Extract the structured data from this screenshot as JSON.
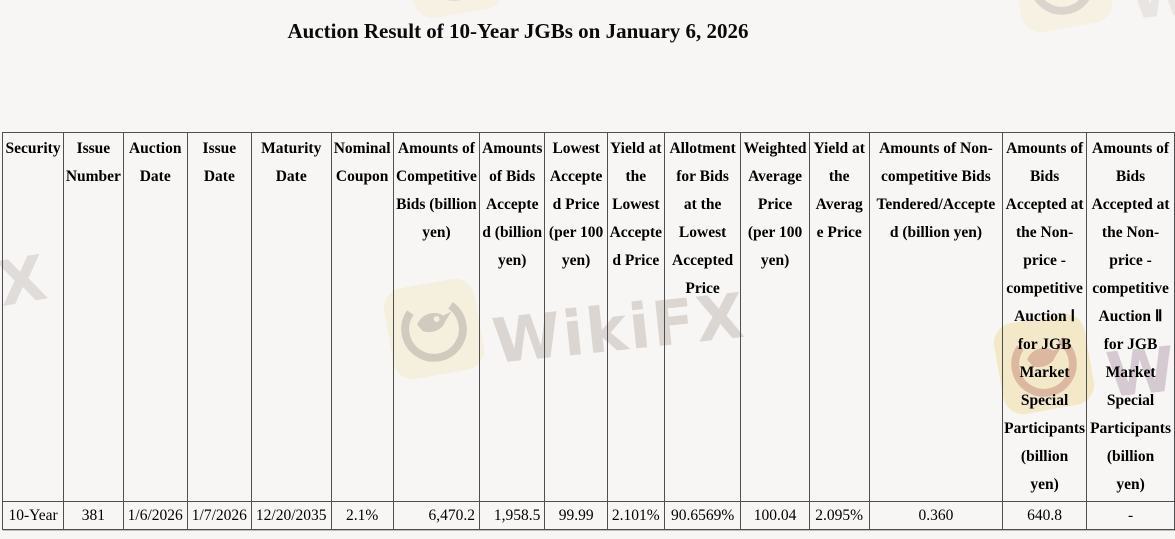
{
  "page_title": "Auction Result of 10-Year JGBs on January 6, 2026",
  "watermark": {
    "brand": "WikiFX",
    "text_color": "#dcd6d2",
    "square_bg_color": "#f5ecce",
    "logo_fg_color": "#b9ad9c"
  },
  "table": {
    "columns": [
      {
        "key": "security",
        "label": "Security",
        "width": 62,
        "align": "center"
      },
      {
        "key": "issue-number",
        "label": "Issue\nNumber",
        "width": 60,
        "align": "center"
      },
      {
        "key": "auction-date",
        "label": "Auction\nDate",
        "width": 62,
        "align": "center"
      },
      {
        "key": "issue-date",
        "label": "Issue\nDate",
        "width": 57,
        "align": "center"
      },
      {
        "key": "maturity-date",
        "label": "Maturity\nDate",
        "width": 76,
        "align": "center"
      },
      {
        "key": "nominal-coupon",
        "label": "Nominal\nCoupon",
        "width": 63,
        "align": "center"
      },
      {
        "key": "competitive-bids-amount",
        "label": "Amounts of\nCompetitive\nBids (billion\nyen)",
        "width": 87,
        "align": "right"
      },
      {
        "key": "bids-accepted-amount",
        "label": "Amounts\nof Bids\nAccepte\nd (billion\nyen)",
        "width": 66,
        "align": "right"
      },
      {
        "key": "lowest-accepted-price",
        "label": "Lowest\nAccepte\nd Price\n(per 100\nyen)",
        "width": 64,
        "align": "center"
      },
      {
        "key": "yield-lowest-accepted-price",
        "label": "Yield at\nthe\nLowest\nAccepte\nd Price",
        "width": 57,
        "align": "center"
      },
      {
        "key": "allotment-lowest-price",
        "label": "Allotment\nfor Bids\nat the\nLowest\nAccepted\nPrice",
        "width": 78,
        "align": "center"
      },
      {
        "key": "weighted-average-price",
        "label": "Weighted\nAverage\nPrice\n(per 100\nyen)",
        "width": 69,
        "align": "center"
      },
      {
        "key": "yield-average-price",
        "label": "Yield at\nthe\nAverag\ne Price",
        "width": 61,
        "align": "center"
      },
      {
        "key": "non-competitive-bids",
        "label": "Amounts of Non-\ncompetitive Bids\nTendered/Accepte\nd (billion yen)",
        "width": 137,
        "align": "center"
      },
      {
        "key": "auction-1-accepted",
        "label": "Amounts of\nBids\nAccepted at\nthe Non-\nprice -\ncompetitive\nAuction Ⅰ\nfor JGB\nMarket\nSpecial\nParticipants\n(billion\nyen)",
        "width": 82,
        "align": "center"
      },
      {
        "key": "auction-2-accepted",
        "label": "Amounts of\nBids\nAccepted at\nthe Non-\nprice -\ncompetitive\nAuction Ⅱ\nfor JGB\nMarket\nSpecial\nParticipants\n(billion\nyen)",
        "width": 89,
        "align": "center"
      }
    ],
    "rows": [
      {
        "cells": [
          "10-Year",
          "381",
          "1/6/2026",
          "1/7/2026",
          "12/20/2035",
          "2.1%",
          "6,470.2",
          "1,958.5",
          "99.99",
          "2.101%",
          "90.6569%",
          "100.04",
          "2.095%",
          "0.360",
          "640.8",
          "-"
        ]
      }
    ]
  }
}
